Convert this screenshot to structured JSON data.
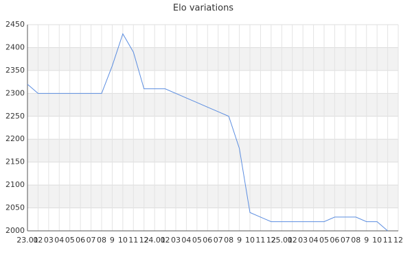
{
  "chart_data": {
    "type": "line",
    "title": "Elo variations",
    "categories": [
      "23.01",
      "02",
      "03",
      "04",
      "05",
      "06",
      "07",
      "08",
      "9",
      "10",
      "11",
      "12",
      "24.01",
      "02",
      "03",
      "04",
      "05",
      "06",
      "07",
      "08",
      "9",
      "10",
      "11",
      "12",
      "25.01",
      "02",
      "03",
      "04",
      "05",
      "06",
      "07",
      "08",
      "9",
      "10",
      "11",
      "12"
    ],
    "series": [
      {
        "name": "Elo",
        "color": "#5b8de0",
        "values": [
          2320,
          2300,
          2300,
          2300,
          2300,
          2300,
          2300,
          2300,
          2360,
          2430,
          2390,
          2310,
          2310,
          2310,
          2300,
          2290,
          2280,
          2270,
          2260,
          2250,
          2180,
          2040,
          2030,
          2020,
          2020,
          2020,
          2020,
          2020,
          2020,
          2030,
          2030,
          2030,
          2020,
          2020,
          2000,
          null
        ]
      }
    ],
    "ylim": [
      2000,
      2450
    ],
    "yticks": [
      2000,
      2050,
      2100,
      2150,
      2200,
      2250,
      2300,
      2350,
      2400,
      2450
    ],
    "grid": true
  }
}
